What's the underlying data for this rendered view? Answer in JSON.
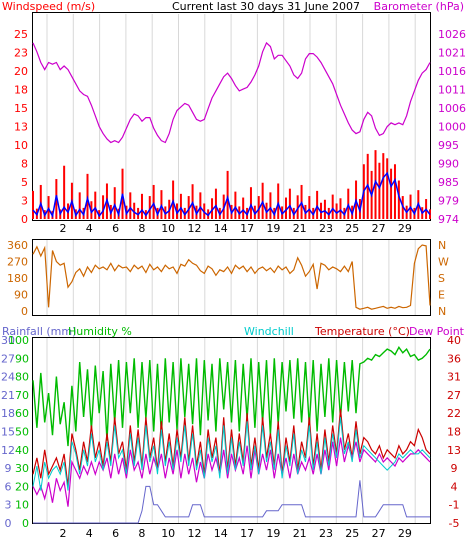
{
  "title": "Current last 30 days 31 June 2007",
  "chart_data": [
    {
      "type": "line",
      "name": "wind-barometer",
      "left_label": "Windspeed (m/s)",
      "right_label": "Barometer (hPa)",
      "left_ticks": [
        "25",
        "23",
        "20",
        "18",
        "15",
        "13",
        "10",
        "8",
        "5",
        "3",
        "0"
      ],
      "right_ticks": [
        "1026",
        "1021",
        "1016",
        "1011",
        "1006",
        "1000",
        "995",
        "990",
        "985",
        "979",
        "974"
      ],
      "x_ticks": [
        "2",
        "4",
        "6",
        "8",
        "10",
        "12",
        "14",
        "17",
        "19",
        "21",
        "23",
        "25",
        "27",
        "29"
      ],
      "colors": {
        "windspeed": "#0000ff",
        "gust": "#ff0000",
        "barometer": "#cc00cc"
      },
      "barometer": [
        1023.5,
        1021,
        1018,
        1016,
        1018,
        1017.5,
        1018,
        1016,
        1017,
        1016,
        1014,
        1012,
        1010,
        1009,
        1008.5,
        1006,
        1003,
        1000,
        998,
        996.5,
        995.5,
        996,
        995.5,
        997,
        999.5,
        1002,
        1003.5,
        1003,
        1001.5,
        1002.5,
        1002.5,
        999.5,
        997.5,
        996,
        995.5,
        998,
        1002,
        1004.5,
        1005.5,
        1006.5,
        1006,
        1004,
        1002,
        1001.5,
        1002,
        1005,
        1008,
        1010,
        1012,
        1014,
        1015,
        1013.5,
        1011.5,
        1010,
        1010.5,
        1011,
        1012.5,
        1014.5,
        1017,
        1021,
        1023.5,
        1022.5,
        1019,
        1020,
        1020,
        1018.5,
        1017,
        1014.5,
        1013.5,
        1015,
        1019,
        1020.5,
        1020.5,
        1019.5,
        1018,
        1016,
        1014,
        1012,
        1009,
        1006,
        1003.5,
        1001,
        999,
        998,
        998.5,
        1002,
        1004,
        1003,
        999.5,
        997.5,
        998,
        1000,
        1001,
        1000.5,
        1001,
        1000.5,
        1003,
        1007,
        1010,
        1013,
        1015,
        1016,
        1018
      ],
      "windspeed": [
        1.2,
        0.6,
        2.1,
        0.5,
        1.4,
        0.4,
        3.2,
        0.7,
        1.6,
        0.9,
        2.4,
        0.5,
        1.3,
        0.6,
        2.8,
        0.9,
        1.5,
        0.4,
        1.1,
        2.6,
        0.8,
        1.9,
        0.6,
        3.4,
        0.7,
        1.5,
        0.9,
        0.6,
        1.2,
        0.5,
        1.3,
        2.1,
        0.6,
        1.8,
        0.7,
        1.1,
        2.4,
        0.8,
        1.5,
        0.6,
        1.3,
        2.2,
        0.7,
        1.6,
        0.9,
        0.5,
        1.2,
        1.8,
        0.6,
        1.4,
        2.9,
        0.8,
        1.6,
        0.7,
        1.2,
        0.6,
        1.9,
        0.7,
        1.3,
        2.3,
        0.9,
        1.5,
        0.6,
        2.1,
        0.7,
        1.2,
        1.8,
        0.6,
        1.4,
        2.2,
        0.8,
        1.3,
        0.6,
        1.7,
        0.9,
        1.1,
        0.6,
        1.4,
        0.8,
        1.2,
        0.6,
        1.9,
        0.7,
        2.5,
        1.1,
        3.8,
        4.6,
        3.2,
        5.1,
        4.2,
        5.6,
        6.2,
        4.4,
        5.3,
        3.1,
        1.7,
        0.9,
        1.6,
        0.7,
        2.1,
        0.8,
        1.3,
        0.6
      ],
      "gust": [
        3.8,
        1.4,
        4.6,
        1.2,
        3.1,
        1.1,
        5.4,
        1.3,
        7.2,
        2.1,
        4.9,
        1.3,
        3.6,
        1.5,
        6.1,
        2.4,
        3.7,
        1.2,
        3.2,
        4.8,
        1.9,
        4.3,
        1.4,
        6.8,
        1.8,
        3.6,
        2.2,
        1.5,
        3.4,
        1.2,
        3.1,
        4.6,
        1.5,
        3.9,
        1.7,
        2.6,
        5.2,
        2.1,
        3.4,
        1.5,
        3.1,
        4.7,
        1.8,
        3.6,
        2.1,
        1.3,
        2.8,
        4.1,
        1.5,
        3.3,
        6.5,
        1.9,
        3.7,
        1.7,
        2.9,
        1.5,
        4.3,
        1.8,
        3.1,
        4.9,
        2.2,
        3.6,
        1.5,
        4.8,
        1.7,
        2.9,
        4.1,
        1.5,
        3.2,
        4.6,
        1.9,
        3.1,
        1.5,
        3.8,
        2.2,
        2.6,
        1.5,
        3.3,
        2.1,
        2.8,
        1.5,
        4.1,
        1.8,
        5.2,
        2.7,
        7.4,
        8.8,
        6.5,
        9.3,
        7.6,
        8.9,
        8.2,
        6.8,
        7.4,
        5.2,
        3.1,
        1.8,
        3.3,
        1.5,
        3.9,
        1.6,
        2.7,
        1.3
      ]
    },
    {
      "type": "line",
      "name": "wind-direction",
      "left_ticks": [
        "360",
        "270",
        "180",
        "90",
        "0"
      ],
      "right_ticks": [
        "N",
        "W",
        "S",
        "E",
        "N"
      ],
      "colors": {
        "direction": "#cc6600"
      },
      "direction": [
        310,
        350,
        300,
        345,
        20,
        330,
        270,
        250,
        260,
        130,
        160,
        210,
        230,
        190,
        240,
        210,
        250,
        230,
        240,
        225,
        260,
        220,
        250,
        235,
        240,
        215,
        250,
        230,
        245,
        210,
        255,
        225,
        240,
        215,
        250,
        230,
        240,
        205,
        255,
        245,
        280,
        260,
        250,
        220,
        205,
        245,
        230,
        195,
        225,
        215,
        240,
        205,
        250,
        230,
        245,
        215,
        240,
        205,
        230,
        240,
        220,
        235,
        210,
        245,
        225,
        240,
        205,
        225,
        290,
        250,
        190,
        215,
        255,
        120,
        260,
        250,
        225,
        240,
        230,
        215,
        245,
        215,
        270,
        20,
        10,
        15,
        20,
        10,
        15,
        20,
        25,
        15,
        20,
        15,
        25,
        18,
        20,
        30,
        260,
        340,
        360,
        355,
        30
      ]
    },
    {
      "type": "line",
      "name": "rain-humidity-temperature",
      "labels": {
        "rainfall": "Rainfall (mm)",
        "humidity": "Humidity %",
        "windchill": "Windchill",
        "temperature": "Temperature (°C)",
        "dewpoint": "Dew Point"
      },
      "rain_ticks": [
        "30",
        "27",
        "24",
        "21",
        "18",
        "15",
        "12",
        "9",
        "6",
        "3",
        "0"
      ],
      "humidity_ticks": [
        "100",
        "90",
        "80",
        "70",
        "60",
        "50",
        "40",
        "30",
        "20",
        "10",
        "0"
      ],
      "temp_ticks": [
        "40",
        "36",
        "31",
        "27",
        "22",
        "18",
        "13",
        "9",
        "4",
        "-1",
        "-5"
      ],
      "colors": {
        "rainfall": "#6666cc",
        "humidity": "#00bb00",
        "windchill": "#00cccc",
        "temperature": "#cc0000",
        "dewpoint": "#cc00cc"
      },
      "humidity": [
        78,
        52,
        82,
        55,
        71,
        48,
        80,
        54,
        66,
        42,
        75,
        50,
        88,
        58,
        84,
        51,
        86,
        60,
        83,
        45,
        87,
        55,
        89,
        52,
        88,
        60,
        90,
        52,
        88,
        57,
        89,
        50,
        87,
        48,
        90,
        55,
        88,
        51,
        90,
        58,
        87,
        54,
        90,
        48,
        89,
        56,
        87,
        50,
        90,
        62,
        88,
        55,
        89,
        50,
        87,
        57,
        90,
        52,
        88,
        55,
        89,
        48,
        90,
        54,
        88,
        61,
        89,
        57,
        90,
        55,
        88,
        53,
        89,
        50,
        87,
        58,
        90,
        55,
        89,
        57,
        88,
        61,
        89,
        60,
        87,
        88,
        90,
        89,
        92,
        91,
        93,
        95,
        94,
        92,
        96,
        93,
        95,
        91,
        92,
        89,
        90,
        92,
        95
      ],
      "temperature": [
        7,
        11,
        6,
        13,
        7,
        9,
        11,
        8,
        12,
        4,
        17,
        13,
        8,
        15,
        10,
        19,
        11,
        15,
        9,
        17,
        10,
        21,
        12,
        15,
        8,
        19,
        10,
        18,
        9,
        21,
        11,
        16,
        8,
        20,
        10,
        17,
        9,
        18,
        11,
        21,
        10,
        19,
        9,
        15,
        7,
        18,
        11,
        16,
        7,
        21,
        8,
        18,
        9,
        17,
        10,
        22,
        9,
        16,
        8,
        21,
        11,
        17,
        9,
        20,
        7,
        16,
        10,
        19,
        8,
        15,
        11,
        21,
        9,
        17,
        8,
        18,
        10,
        19,
        12,
        23,
        13,
        17,
        11,
        20,
        12,
        16,
        15,
        13,
        12,
        14,
        11,
        13,
        12,
        11,
        14,
        12,
        13,
        15,
        14,
        18,
        16,
        13,
        12
      ],
      "dewpoint": [
        4,
        2,
        4,
        1,
        5,
        0,
        6,
        3,
        5,
        -1,
        10,
        8,
        6,
        9,
        7,
        10,
        7,
        10,
        8,
        11,
        6,
        12,
        7,
        11,
        6,
        13,
        8,
        10,
        6,
        12,
        7,
        11,
        8,
        12,
        6,
        11,
        7,
        13,
        6,
        12,
        7,
        11,
        5,
        10,
        6,
        12,
        8,
        11,
        7,
        13,
        6,
        12,
        8,
        11,
        7,
        14,
        6,
        13,
        7,
        12,
        8,
        13,
        6,
        12,
        7,
        11,
        6,
        12,
        7,
        10,
        8,
        11,
        7,
        12,
        7,
        13,
        8,
        15,
        9,
        16,
        10,
        14,
        11,
        15,
        10,
        13,
        12,
        11,
        10,
        12,
        10,
        11,
        10,
        9,
        11,
        10,
        11,
        12,
        12,
        13,
        12,
        11,
        10
      ],
      "windchill": [
        4,
        9,
        3,
        10,
        6,
        8,
        9,
        7,
        10,
        3,
        15,
        12,
        7,
        13,
        9,
        17,
        10,
        13,
        8,
        15,
        9,
        19,
        11,
        13,
        7,
        17,
        9,
        16,
        8,
        19,
        10,
        14,
        7,
        18,
        9,
        15,
        8,
        16,
        10,
        19,
        9,
        17,
        8,
        13,
        6,
        16,
        10,
        14,
        6,
        19,
        7,
        16,
        8,
        15,
        9,
        20,
        8,
        14,
        7,
        19,
        10,
        15,
        8,
        18,
        6,
        14,
        9,
        17,
        7,
        13,
        10,
        19,
        8,
        15,
        7,
        16,
        9,
        17,
        11,
        21,
        12,
        15,
        10,
        18,
        11,
        14,
        13,
        12,
        11,
        10,
        9,
        8,
        9,
        10,
        12,
        11,
        12,
        13,
        12,
        12,
        13,
        12,
        11
      ],
      "rainfall": [
        0,
        0,
        0,
        0,
        0,
        0,
        0,
        0,
        0,
        0,
        0,
        0,
        0,
        0,
        0,
        0,
        0,
        0,
        0,
        0,
        0,
        0,
        0,
        0,
        0,
        0,
        0,
        0,
        2,
        6,
        6,
        3,
        3,
        2,
        1,
        1,
        1,
        1,
        1,
        1,
        1,
        3,
        3,
        3,
        1,
        1,
        1,
        1,
        1,
        1,
        1,
        1,
        1,
        1,
        1,
        1,
        1,
        1,
        1,
        1,
        2,
        2,
        2,
        2,
        3,
        3,
        3,
        3,
        3,
        3,
        1,
        1,
        1,
        1,
        1,
        1,
        1,
        1,
        1,
        1,
        1,
        1,
        1,
        1,
        7,
        1,
        1,
        1,
        1,
        2,
        3,
        3,
        3,
        3,
        3,
        3,
        1,
        1,
        1,
        1,
        1,
        1,
        1
      ]
    }
  ]
}
